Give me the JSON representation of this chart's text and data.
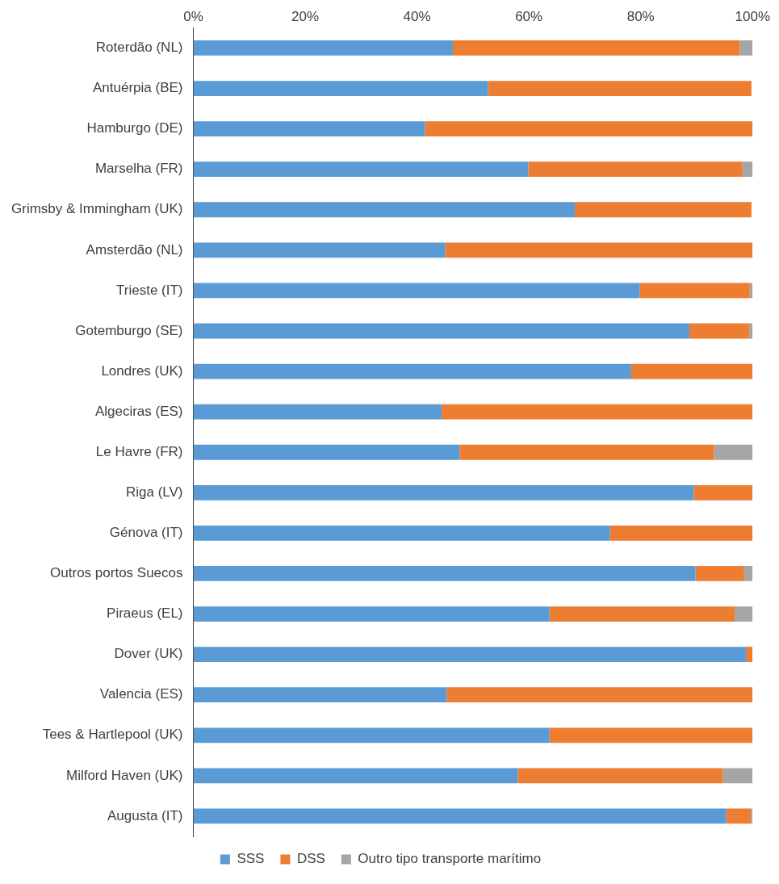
{
  "chart_data": {
    "type": "bar",
    "orientation": "horizontal",
    "stacked": true,
    "categories": [
      "Roterdão (NL)",
      "Antuérpia (BE)",
      "Hamburgo (DE)",
      "Marselha (FR)",
      "Grimsby & Immingham (UK)",
      "Amsterdão (NL)",
      "Trieste (IT)",
      "Gotemburgo (SE)",
      "Londres (UK)",
      "Algeciras (ES)",
      "Le Havre (FR)",
      "Riga (LV)",
      "Génova (IT)",
      "Outros portos Suecos",
      "Piraeus (EL)",
      "Dover (UK)",
      "Valencia (ES)",
      "Tees & Hartlepool (UK)",
      "Milford Haven (UK)",
      "Augusta (IT)"
    ],
    "series": [
      {
        "name": "SSS",
        "color": "#5b9bd5",
        "values": [
          46.4,
          52.7,
          41.4,
          59.9,
          68.2,
          45.0,
          79.8,
          88.7,
          78.3,
          44.4,
          47.6,
          89.5,
          74.5,
          89.8,
          63.7,
          98.8,
          45.3,
          63.7,
          58.0,
          95.3
        ]
      },
      {
        "name": "DSS",
        "color": "#ed7d31",
        "values": [
          51.3,
          47.1,
          58.6,
          38.3,
          31.6,
          55.0,
          19.7,
          10.7,
          21.7,
          55.6,
          45.5,
          10.5,
          25.5,
          8.7,
          33.1,
          1.2,
          54.7,
          36.3,
          36.7,
          4.4
        ]
      },
      {
        "name": "Outro tipo transporte marítimo",
        "color": "#a5a5a5",
        "values": [
          2.3,
          null,
          0,
          1.8,
          null,
          0,
          0.5,
          0.6,
          0,
          0,
          6.9,
          0,
          0,
          1.5,
          3.2,
          0,
          0,
          0,
          5.3,
          0.3
        ]
      }
    ],
    "xlim": [
      0,
      100
    ],
    "xticks": [
      {
        "value": 0,
        "label": "0%"
      },
      {
        "value": 20,
        "label": "20%"
      },
      {
        "value": 40,
        "label": "40%"
      },
      {
        "value": 60,
        "label": "60%"
      },
      {
        "value": 80,
        "label": "80%"
      },
      {
        "value": 100,
        "label": "100%"
      }
    ],
    "grid": false,
    "legend": "bottom"
  }
}
